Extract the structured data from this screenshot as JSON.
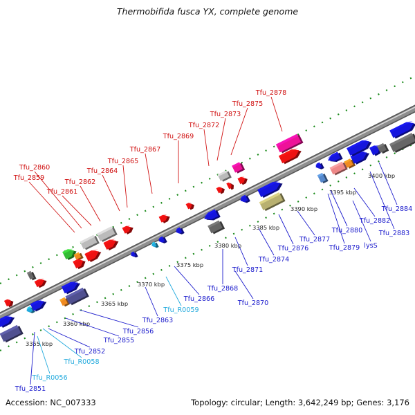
{
  "title": "Thermobifida fusca YX, complete genome",
  "footer": {
    "accession": "Accession: NC_007333",
    "summary": "Topology: circular; Length: 3,642,249 bp; Genes: 3,176"
  },
  "colors": {
    "background": "#ffffff",
    "backbone": "#8e8e8e",
    "top_strand_label": "#d01010",
    "bottom_strand_label": "#1a1acc",
    "rna_label": "#22aadd",
    "tick": "#1a8a1a",
    "gene_red": "#ee1111",
    "gene_blue": "#1515dd",
    "gene_grey": "#bbbbbb",
    "gene_magenta": "#ee1199",
    "gene_khaki": "#b8b070",
    "gene_slate": "#505090"
  },
  "scale_labels": [
    "3355 kbp",
    "3360 kbp",
    "3365 kbp",
    "3370 kbp",
    "3375 kbp",
    "3380 kbp",
    "3385 kbp",
    "3390 kbp",
    "3395 kbp",
    "3400 kbp"
  ],
  "top_strand_genes": [
    "Tfu_2859",
    "Tfu_2860",
    "Tfu_2861",
    "Tfu_2862",
    "Tfu_2864",
    "Tfu_2865",
    "Tfu_2867",
    "Tfu_2869",
    "Tfu_2872",
    "Tfu_2873",
    "Tfu_2875",
    "Tfu_2878"
  ],
  "bottom_strand_genes": [
    "Tfu_2851",
    "Tfu_R0056",
    "Tfu_R0058",
    "Tfu_2852",
    "Tfu_2855",
    "Tfu_2856",
    "Tfu_2863",
    "Tfu_R0059",
    "Tfu_2866",
    "Tfu_2868",
    "Tfu_2870",
    "Tfu_2871",
    "Tfu_2874",
    "Tfu_2876",
    "Tfu_2877",
    "Tfu_2879",
    "Tfu_2880",
    "lysS",
    "Tfu_2882",
    "Tfu_2883",
    "Tfu_2884"
  ]
}
